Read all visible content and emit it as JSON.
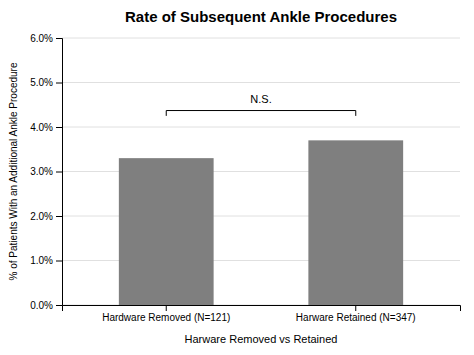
{
  "chart_data": {
    "type": "bar",
    "title": "Rate of Subsequent Ankle Procedures",
    "categories": [
      "Hardware Removed (N=121)",
      "Harware Retained (N=347)"
    ],
    "values": [
      3.3,
      3.7
    ],
    "color": "#7f7f7f",
    "ylabel": "% of Patients With an Additional Ankle Procedure",
    "xlabel": "Harware Removed vs Retained",
    "ylim": [
      0.0,
      6.0
    ],
    "yticks": [
      {
        "value": 0.0,
        "label": "0.0%"
      },
      {
        "value": 1.0,
        "label": "1.0%"
      },
      {
        "value": 2.0,
        "label": "2.0%"
      },
      {
        "value": 3.0,
        "label": "3.0%"
      },
      {
        "value": 4.0,
        "label": "4.0%"
      },
      {
        "value": 5.0,
        "label": "5.0%"
      },
      {
        "value": 6.0,
        "label": "6.0%"
      }
    ],
    "grid": true,
    "annotations": [
      {
        "text": "N.S.",
        "y": 4.55,
        "bracket_y": 4.25,
        "bracket_tick": 0.12
      }
    ]
  }
}
